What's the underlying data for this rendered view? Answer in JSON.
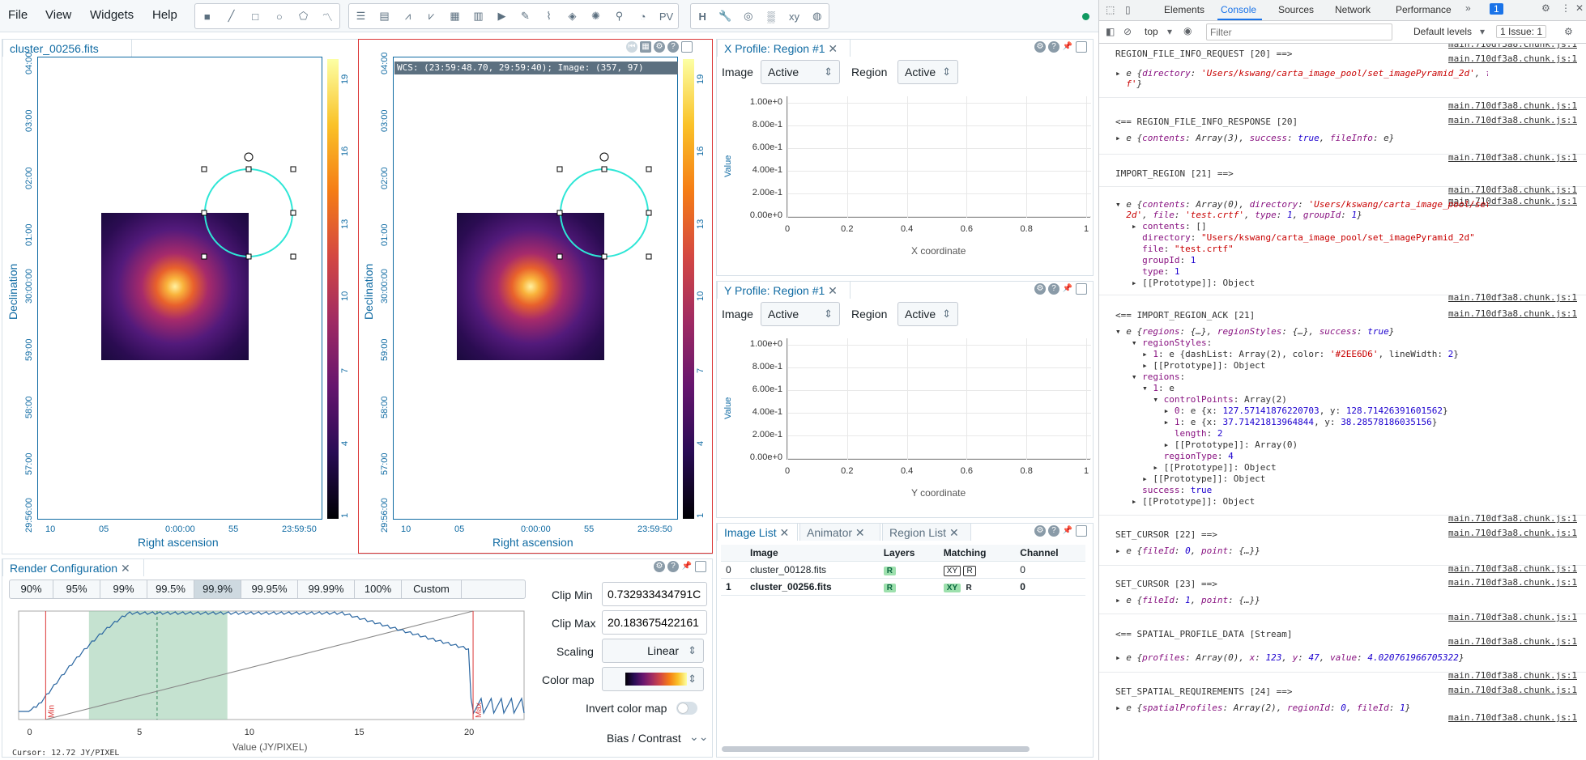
{
  "menubar": {
    "items": [
      "File",
      "View",
      "Widgets",
      "Help"
    ]
  },
  "viewer": {
    "tab": "cluster_00256.fits",
    "wcs_readout": "WCS: (23:59:48.70, 29:59:40); Image: (357, 97)",
    "dec_ticks": [
      "04:00",
      "03:00",
      "02:00",
      "01:00",
      "30:00:00",
      "59:00",
      "58:00",
      "57:00",
      "29:56:00"
    ],
    "ra_ticks": [
      "10",
      "05",
      "0:00:00",
      "55",
      "23:59:50"
    ],
    "xlabel": "Right ascension",
    "ylabel": "Declination",
    "cbar_ticks": [
      "19",
      "16",
      "13",
      "10",
      "7",
      "4",
      "1"
    ]
  },
  "xprofile": {
    "tab": "X Profile: Region #1",
    "image_label": "Image",
    "image_value": "Active",
    "region_label": "Region",
    "region_value": "Active",
    "yticks": [
      "1.00e+0",
      "8.00e-1",
      "6.00e-1",
      "4.00e-1",
      "2.00e-1",
      "0.00e+0"
    ],
    "xticks": [
      "0",
      "0.2",
      "0.4",
      "0.6",
      "0.8",
      "1"
    ],
    "xlabel": "X coordinate",
    "ylabel": "Value"
  },
  "yprofile": {
    "tab": "Y Profile: Region #1",
    "image_label": "Image",
    "image_value": "Active",
    "region_label": "Region",
    "region_value": "Active",
    "yticks": [
      "1.00e+0",
      "8.00e-1",
      "6.00e-1",
      "4.00e-1",
      "2.00e-1",
      "0.00e+0"
    ],
    "xticks": [
      "0",
      "0.2",
      "0.4",
      "0.6",
      "0.8",
      "1"
    ],
    "xlabel": "Y coordinate",
    "ylabel": "Value"
  },
  "imagelist": {
    "tabs": [
      "Image List",
      "Animator",
      "Region List"
    ],
    "headers": [
      "Image",
      "Layers",
      "Matching",
      "Channel"
    ],
    "rows": [
      {
        "idx": "0",
        "image": "cluster_00128.fits",
        "layer": "R",
        "match1": "XY",
        "match2": "R",
        "channel": "0"
      },
      {
        "idx": "1",
        "image": "cluster_00256.fits",
        "layer": "R",
        "match1": "XY",
        "match2": "R",
        "channel": "0"
      }
    ]
  },
  "render": {
    "tab": "Render Configuration",
    "percentiles": [
      "90%",
      "95%",
      "99%",
      "99.5%",
      "99.9%",
      "99.95%",
      "99.99%",
      "100%",
      "Custom"
    ],
    "selected": "99.9%",
    "clip_min_label": "Clip Min",
    "clip_min": "0.732933434791C",
    "clip_max_label": "Clip Max",
    "clip_max": "20.183675422161",
    "scaling_label": "Scaling",
    "scaling": "Linear",
    "colormap_label": "Color map",
    "invert_label": "Invert color map",
    "bias_label": "Bias / Contrast",
    "hist_xticks": [
      "0",
      "5",
      "10",
      "15",
      "20"
    ],
    "hist_xlabel": "Value (JY/PIXEL)",
    "cursor": "Cursor: 12.72 JY/PIXEL",
    "min_label": "Min",
    "max_label": "Max"
  },
  "devtools": {
    "tabs": [
      "Elements",
      "Console",
      "Sources",
      "Network",
      "Performance"
    ],
    "active": "Console",
    "context": "top",
    "filter_placeholder": "Filter",
    "levels": "Default levels",
    "issues": "1 Issue: 1",
    "badge": "1",
    "src": "main.710df3a8.chunk.js:1"
  }
}
